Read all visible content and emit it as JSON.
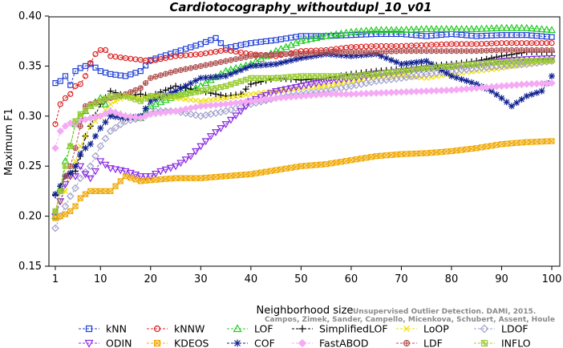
{
  "chart_data": {
    "type": "line",
    "title": "Cardiotocography_withoutdupl_10_v01",
    "xlabel": "Neighborhood size",
    "ylabel": "Maximum F1",
    "xlim": [
      1,
      100
    ],
    "ylim": [
      0.15,
      0.4
    ],
    "x_ticks": [
      1,
      10,
      20,
      30,
      40,
      50,
      60,
      70,
      80,
      90,
      100
    ],
    "y_ticks": [
      0.15,
      0.2,
      0.25,
      0.3,
      0.35,
      0.4
    ],
    "y_tick_labels": [
      "0.15",
      "0.20",
      "0.25",
      "0.30",
      "0.35",
      "0.40"
    ],
    "grid": false,
    "legend_position": "bottom",
    "series": [
      {
        "name": "kNN",
        "color": "#1f3fd6",
        "marker": "square",
        "x": [
          1,
          2,
          3,
          4,
          5,
          6,
          8,
          10,
          12,
          15,
          18,
          20,
          25,
          30,
          33,
          35,
          40,
          45,
          50,
          55,
          60,
          65,
          70,
          75,
          80,
          85,
          90,
          95,
          100
        ],
        "y": [
          0.333,
          0.335,
          0.34,
          0.331,
          0.345,
          0.348,
          0.352,
          0.345,
          0.342,
          0.34,
          0.345,
          0.356,
          0.364,
          0.372,
          0.378,
          0.368,
          0.373,
          0.376,
          0.38,
          0.38,
          0.381,
          0.382,
          0.382,
          0.38,
          0.382,
          0.38,
          0.381,
          0.381,
          0.379
        ]
      },
      {
        "name": "kNNW",
        "color": "#dd1f1f",
        "marker": "circle",
        "x": [
          1,
          2,
          3,
          4,
          5,
          6,
          7,
          8,
          9,
          10,
          11,
          12,
          15,
          20,
          25,
          30,
          35,
          40,
          45,
          50,
          55,
          60,
          65,
          70,
          75,
          80,
          85,
          90,
          95,
          100
        ],
        "y": [
          0.292,
          0.312,
          0.318,
          0.322,
          0.33,
          0.332,
          0.34,
          0.353,
          0.362,
          0.366,
          0.366,
          0.36,
          0.358,
          0.355,
          0.36,
          0.362,
          0.366,
          0.362,
          0.36,
          0.365,
          0.366,
          0.369,
          0.37,
          0.37,
          0.371,
          0.372,
          0.372,
          0.373,
          0.373,
          0.373
        ]
      },
      {
        "name": "LOF",
        "color": "#22cc22",
        "marker": "triangle",
        "x": [
          1,
          2,
          3,
          4,
          5,
          6,
          8,
          10,
          12,
          15,
          18,
          20,
          25,
          30,
          35,
          40,
          45,
          50,
          55,
          60,
          65,
          70,
          75,
          80,
          85,
          90,
          95,
          100
        ],
        "y": [
          0.2,
          0.228,
          0.255,
          0.27,
          0.292,
          0.3,
          0.31,
          0.318,
          0.305,
          0.3,
          0.298,
          0.31,
          0.32,
          0.33,
          0.345,
          0.352,
          0.365,
          0.375,
          0.38,
          0.384,
          0.386,
          0.386,
          0.387,
          0.387,
          0.387,
          0.388,
          0.388,
          0.386
        ]
      },
      {
        "name": "SimplifiedLOF",
        "color": "#000000",
        "marker": "plus",
        "x": [
          1,
          2,
          3,
          4,
          5,
          6,
          7,
          8,
          10,
          12,
          15,
          18,
          20,
          25,
          30,
          35,
          38,
          40,
          45,
          50,
          55,
          60,
          65,
          70,
          75,
          80,
          85,
          90,
          95,
          100
        ],
        "y": [
          0.221,
          0.23,
          0.24,
          0.243,
          0.245,
          0.26,
          0.28,
          0.29,
          0.312,
          0.325,
          0.32,
          0.322,
          0.32,
          0.33,
          0.325,
          0.32,
          0.322,
          0.332,
          0.338,
          0.336,
          0.338,
          0.342,
          0.345,
          0.347,
          0.35,
          0.352,
          0.355,
          0.36,
          0.364,
          0.364
        ]
      },
      {
        "name": "LoOP",
        "color": "#eedd00",
        "marker": "x",
        "x": [
          1,
          2,
          3,
          4,
          5,
          6,
          8,
          10,
          12,
          15,
          18,
          20,
          25,
          30,
          35,
          40,
          45,
          50,
          55,
          60,
          65,
          70,
          75,
          80,
          85,
          90,
          95,
          100
        ],
        "y": [
          0.205,
          0.215,
          0.225,
          0.24,
          0.255,
          0.27,
          0.29,
          0.3,
          0.312,
          0.32,
          0.318,
          0.32,
          0.318,
          0.315,
          0.318,
          0.322,
          0.325,
          0.328,
          0.33,
          0.335,
          0.338,
          0.34,
          0.338,
          0.342,
          0.345,
          0.348,
          0.352,
          0.355
        ]
      },
      {
        "name": "LDOF",
        "color": "#a0a0cc",
        "marker": "diamond",
        "x": [
          1,
          2,
          3,
          4,
          5,
          6,
          8,
          10,
          12,
          15,
          18,
          20,
          25,
          30,
          35,
          40,
          45,
          50,
          55,
          60,
          65,
          70,
          75,
          80,
          85,
          90,
          95,
          100
        ],
        "y": [
          0.188,
          0.2,
          0.21,
          0.22,
          0.228,
          0.238,
          0.25,
          0.27,
          0.285,
          0.295,
          0.298,
          0.305,
          0.305,
          0.3,
          0.305,
          0.312,
          0.318,
          0.322,
          0.325,
          0.33,
          0.335,
          0.338,
          0.342,
          0.345,
          0.348,
          0.35,
          0.352,
          0.355
        ]
      },
      {
        "name": "ODIN",
        "color": "#8a2be2",
        "marker": "triangle-down",
        "x": [
          1,
          2,
          3,
          4,
          5,
          6,
          7,
          8,
          9,
          10,
          12,
          15,
          18,
          20,
          22,
          25,
          28,
          30,
          32,
          35,
          38,
          40,
          45,
          50,
          55,
          60,
          65,
          70,
          75,
          80,
          85,
          90,
          95,
          100
        ],
        "y": [
          0.2,
          0.215,
          0.232,
          0.24,
          0.24,
          0.25,
          0.242,
          0.238,
          0.245,
          0.255,
          0.248,
          0.245,
          0.24,
          0.24,
          0.245,
          0.25,
          0.26,
          0.27,
          0.28,
          0.292,
          0.305,
          0.315,
          0.325,
          0.33,
          0.335,
          0.338,
          0.342,
          0.345,
          0.348,
          0.35,
          0.352,
          0.355,
          0.357,
          0.358
        ]
      },
      {
        "name": "KDEOS",
        "color": "#f0a800",
        "marker": "square-x",
        "x": [
          1,
          2,
          3,
          4,
          5,
          6,
          7,
          8,
          10,
          12,
          15,
          18,
          20,
          25,
          30,
          35,
          40,
          45,
          50,
          55,
          60,
          65,
          70,
          75,
          80,
          85,
          90,
          95,
          100
        ],
        "y": [
          0.198,
          0.2,
          0.202,
          0.205,
          0.21,
          0.218,
          0.222,
          0.225,
          0.225,
          0.225,
          0.24,
          0.235,
          0.236,
          0.238,
          0.238,
          0.24,
          0.242,
          0.246,
          0.25,
          0.252,
          0.256,
          0.26,
          0.262,
          0.263,
          0.265,
          0.268,
          0.272,
          0.274,
          0.275
        ]
      },
      {
        "name": "COF",
        "color": "#102090",
        "marker": "star",
        "x": [
          1,
          2,
          3,
          4,
          5,
          6,
          7,
          8,
          10,
          12,
          15,
          18,
          20,
          25,
          30,
          35,
          40,
          45,
          50,
          55,
          60,
          65,
          70,
          75,
          80,
          85,
          88,
          90,
          92,
          95,
          98,
          100
        ],
        "y": [
          0.222,
          0.23,
          0.24,
          0.243,
          0.25,
          0.262,
          0.268,
          0.272,
          0.288,
          0.3,
          0.298,
          0.3,
          0.315,
          0.325,
          0.338,
          0.34,
          0.35,
          0.352,
          0.358,
          0.362,
          0.36,
          0.362,
          0.352,
          0.355,
          0.34,
          0.332,
          0.325,
          0.318,
          0.31,
          0.32,
          0.325,
          0.34
        ]
      },
      {
        "name": "FastABOD",
        "color": "#f4aaf4",
        "marker": "diamond-filled",
        "x": [
          1,
          2,
          3,
          4,
          5,
          6,
          8,
          10,
          12,
          15,
          18,
          20,
          25,
          30,
          35,
          40,
          45,
          50,
          55,
          60,
          65,
          70,
          75,
          80,
          85,
          90,
          95,
          100
        ],
        "y": [
          0.268,
          0.285,
          0.29,
          0.293,
          0.292,
          0.295,
          0.298,
          0.3,
          0.305,
          0.3,
          0.298,
          0.302,
          0.305,
          0.31,
          0.312,
          0.315,
          0.318,
          0.32,
          0.322,
          0.322,
          0.323,
          0.324,
          0.325,
          0.326,
          0.328,
          0.33,
          0.332,
          0.333
        ]
      },
      {
        "name": "LDF",
        "color": "#b05050",
        "marker": "circle-plus",
        "x": [
          1,
          2,
          3,
          4,
          5,
          6,
          7,
          8,
          10,
          12,
          15,
          18,
          20,
          25,
          30,
          35,
          40,
          45,
          50,
          55,
          60,
          65,
          70,
          75,
          80,
          85,
          90,
          95,
          100
        ],
        "y": [
          0.205,
          0.225,
          0.24,
          0.25,
          0.268,
          0.29,
          0.31,
          0.312,
          0.315,
          0.318,
          0.322,
          0.328,
          0.338,
          0.345,
          0.35,
          0.355,
          0.36,
          0.362,
          0.362,
          0.364,
          0.364,
          0.364,
          0.365,
          0.365,
          0.365,
          0.365,
          0.366,
          0.366,
          0.366
        ]
      },
      {
        "name": "INFLO",
        "color": "#99cc33",
        "marker": "square-star",
        "x": [
          1,
          2,
          3,
          4,
          5,
          6,
          8,
          10,
          12,
          15,
          18,
          20,
          25,
          30,
          35,
          40,
          45,
          50,
          55,
          60,
          65,
          70,
          75,
          80,
          85,
          90,
          95,
          100
        ],
        "y": [
          0.205,
          0.225,
          0.25,
          0.27,
          0.295,
          0.302,
          0.31,
          0.315,
          0.32,
          0.32,
          0.315,
          0.32,
          0.32,
          0.325,
          0.33,
          0.338,
          0.338,
          0.34,
          0.34,
          0.34,
          0.342,
          0.345,
          0.348,
          0.35,
          0.352,
          0.354,
          0.355,
          0.356
        ]
      }
    ]
  },
  "credit_line1": "Unsupervised Outlier Detection. DAMI, 2015.",
  "credit_line2": "Campos, Zimek, Sander, Campello, Micenkova, Schubert, Assent, Houle"
}
